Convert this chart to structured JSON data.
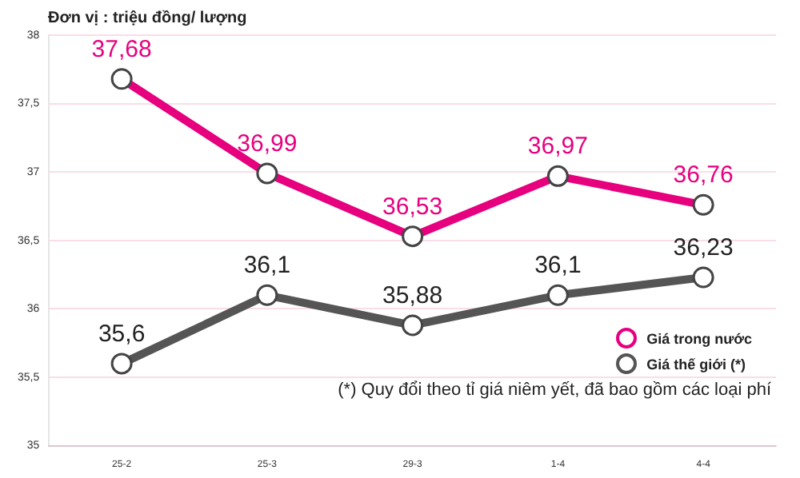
{
  "chart_data": {
    "type": "line",
    "title": "Đơn vị : triệu  đồng/ lượng",
    "categories": [
      "25-2",
      "25-3",
      "29-3",
      "1-4",
      "4-4"
    ],
    "series": [
      {
        "name": "Giá trong nước",
        "color": "#e6007e",
        "values": [
          37.68,
          36.99,
          36.53,
          36.97,
          36.76
        ],
        "value_labels": [
          "37,68",
          "36,99",
          "36,53",
          "36,97",
          "36,76"
        ]
      },
      {
        "name": "Giá thế giới (*)",
        "color": "#555555",
        "values": [
          35.6,
          36.1,
          35.88,
          36.1,
          36.23
        ],
        "value_labels": [
          "35,6",
          "36,1",
          "35,88",
          "36,1",
          "36,23"
        ]
      }
    ],
    "ylim": [
      35,
      38
    ],
    "yticks": [
      35,
      {
        "value": 35.5,
        "label": "35,5"
      },
      36,
      {
        "value": 36.5,
        "label": "36,5"
      },
      37,
      {
        "value": 37.5,
        "label": "37,5"
      },
      38
    ],
    "grid": "y",
    "legend": "bottom right",
    "marker": "circle",
    "line_style": "solid",
    "annotations": [
      "(*) Quy đổi theo tỉ giá niêm yết, đã bao gồm các loại phí"
    ]
  }
}
